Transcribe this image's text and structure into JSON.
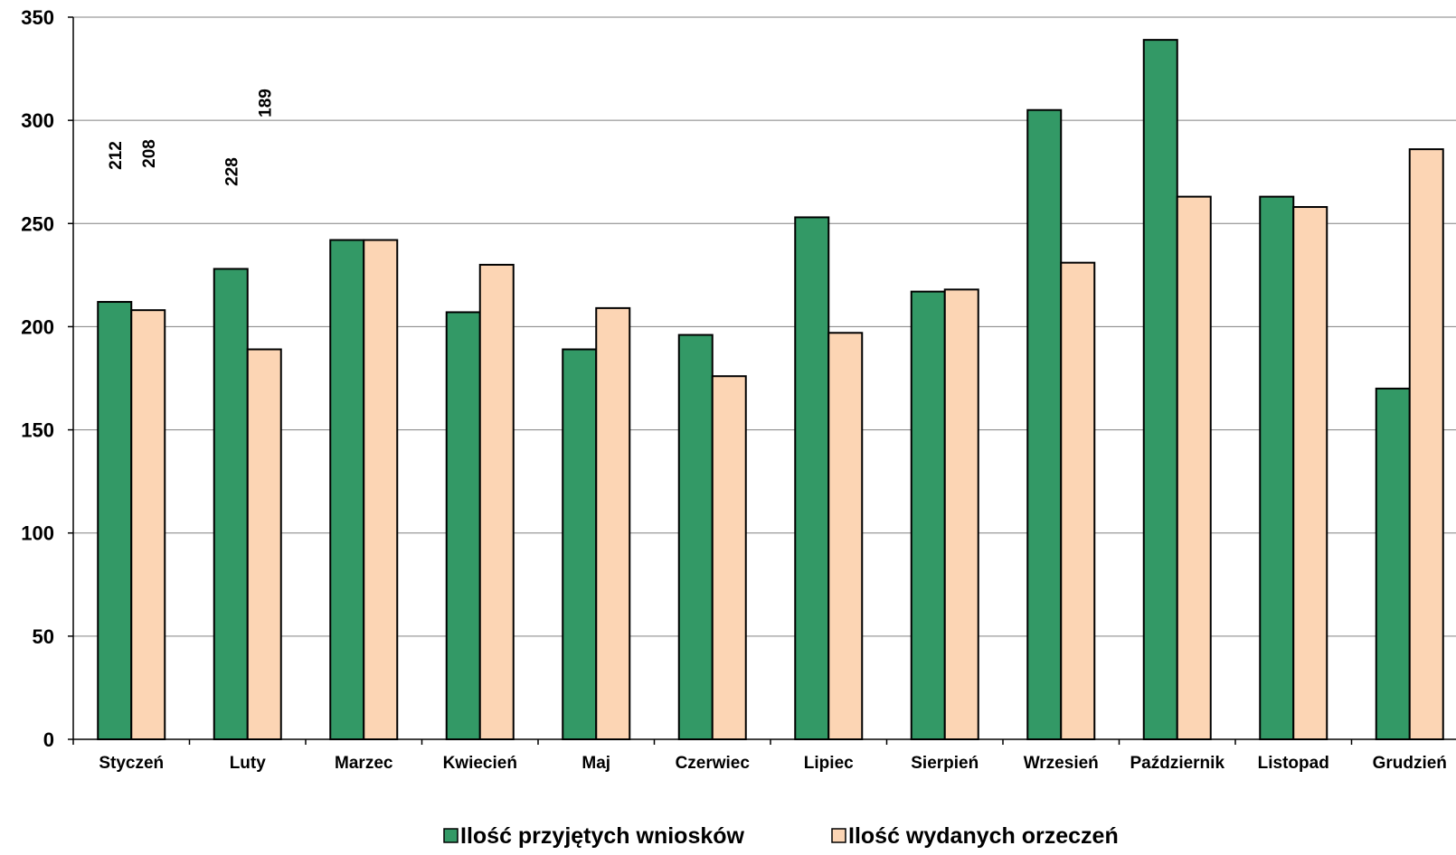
{
  "chart_data": {
    "type": "bar",
    "categories": [
      "Styczeń",
      "Luty",
      "Marzec",
      "Kwiecień",
      "Maj",
      "Czerwiec",
      "Lipiec",
      "Sierpień",
      "Wrzesień",
      "Październik",
      "Listopad",
      "Grudzień"
    ],
    "series": [
      {
        "name": "Ilość przyjętych wniosków",
        "color": "#339966",
        "values": [
          212,
          228,
          242,
          207,
          189,
          196,
          253,
          217,
          305,
          339,
          263,
          170
        ],
        "labels": [
          "212",
          "228",
          "242",
          "207",
          "189",
          "196",
          "253",
          "217",
          "305",
          "339",
          "263",
          "170"
        ]
      },
      {
        "name": "Ilość wydanych orzeczeń",
        "color": "#FCD5B4",
        "values": [
          208,
          189,
          242,
          230,
          209,
          176,
          197,
          218,
          231,
          263,
          258,
          286
        ],
        "labels": [
          "208",
          "189",
          "242",
          "230",
          "209",
          "176",
          "197",
          "218",
          "231",
          "263",
          "258",
          "286"
        ]
      }
    ],
    "yticks": [
      "0",
      "50",
      "100",
      "150",
      "200",
      "250",
      "300",
      "350"
    ],
    "ylim": [
      0,
      350
    ],
    "grid": true,
    "legend_position": "bottom",
    "label_positions": {
      "0": [
        172,
        190
      ],
      "1": [
        170,
        114
      ]
    }
  }
}
